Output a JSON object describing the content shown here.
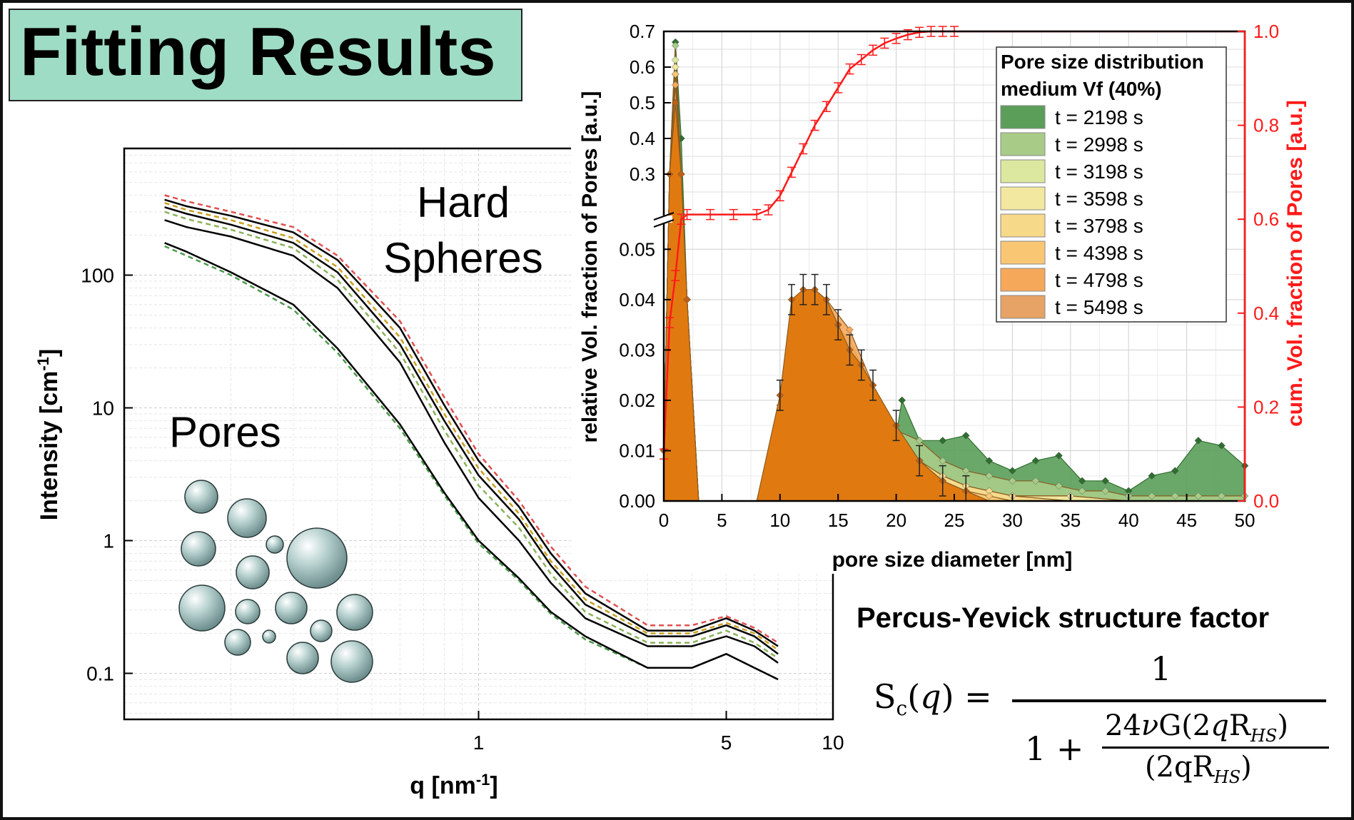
{
  "header": {
    "title": "Fitting Results"
  },
  "annotations": {
    "hard_line1": "Hard",
    "hard_line2": "Spheres",
    "pores": "Pores"
  },
  "equation": {
    "title": "Percus-Yevick structure factor",
    "lhs": "Sc(q) =",
    "numerator": "1",
    "denom_one": "1 +",
    "frac_top": "24νG(2qRHS)",
    "frac_bottom": "(2qRHS)"
  },
  "colors": {
    "title_bg": "#9fdcc6",
    "cumulative": "#ff1a1a",
    "fit_black": "#000000",
    "sphere": "#9ab9b8"
  },
  "chart_data": [
    {
      "type": "line",
      "xlabel": "q [nm-1]",
      "ylabel": "Intensity [cm-1]",
      "xscale": "log",
      "yscale": "log",
      "xlim": [
        0.1,
        10
      ],
      "ylim": [
        0.045,
        900
      ],
      "xticks": [
        {
          "v": 1,
          "label": "1"
        },
        {
          "v": 5,
          "label": "5"
        },
        {
          "v": 10,
          "label": "10"
        }
      ],
      "yticks": [
        {
          "v": 0.1,
          "label": "0.1"
        },
        {
          "v": 1,
          "label": "1"
        },
        {
          "v": 10,
          "label": "10"
        },
        {
          "v": 100,
          "label": "100"
        }
      ],
      "grid": true,
      "series": [
        {
          "color": "#e05050",
          "dashed": true,
          "x": [
            0.13,
            0.15,
            0.2,
            0.3,
            0.4,
            0.6,
            0.8,
            1.0,
            1.3,
            1.6,
            2,
            3,
            4,
            5,
            6,
            7
          ],
          "y": [
            400,
            360,
            300,
            230,
            140,
            45,
            12,
            4.5,
            2.0,
            0.9,
            0.45,
            0.23,
            0.23,
            0.27,
            0.22,
            0.17
          ]
        },
        {
          "color": "#000000",
          "dashed": false,
          "x": [
            0.13,
            0.15,
            0.2,
            0.3,
            0.4,
            0.6,
            0.8,
            1.0,
            1.3,
            1.6,
            2,
            3,
            4,
            5,
            6,
            7
          ],
          "y": [
            370,
            330,
            280,
            210,
            130,
            40,
            10.5,
            4.0,
            1.8,
            0.8,
            0.4,
            0.21,
            0.21,
            0.26,
            0.21,
            0.16
          ]
        },
        {
          "color": "#c9a020",
          "dashed": true,
          "x": [
            0.13,
            0.15,
            0.2,
            0.3,
            0.4,
            0.6,
            0.8,
            1.0,
            1.3,
            1.6,
            2,
            3,
            4,
            5,
            6,
            7
          ],
          "y": [
            350,
            310,
            260,
            190,
            115,
            34,
            9,
            3.5,
            1.6,
            0.7,
            0.36,
            0.2,
            0.2,
            0.24,
            0.2,
            0.15
          ]
        },
        {
          "color": "#000000",
          "dashed": false,
          "x": [
            0.13,
            0.15,
            0.2,
            0.3,
            0.4,
            0.6,
            0.8,
            1.0,
            1.3,
            1.6,
            2,
            3,
            4,
            5,
            6,
            7
          ],
          "y": [
            325,
            290,
            240,
            175,
            105,
            30,
            8,
            3.1,
            1.45,
            0.65,
            0.33,
            0.19,
            0.19,
            0.23,
            0.19,
            0.14
          ]
        },
        {
          "color": "#8ab35a",
          "dashed": true,
          "x": [
            0.13,
            0.15,
            0.2,
            0.3,
            0.4,
            0.6,
            0.8,
            1.0,
            1.3,
            1.6,
            2,
            3,
            4,
            5,
            6,
            7
          ],
          "y": [
            300,
            265,
            220,
            160,
            92,
            26,
            6.8,
            2.6,
            1.25,
            0.56,
            0.29,
            0.17,
            0.17,
            0.21,
            0.17,
            0.13
          ]
        },
        {
          "color": "#000000",
          "dashed": false,
          "x": [
            0.13,
            0.15,
            0.2,
            0.3,
            0.4,
            0.6,
            0.8,
            1.0,
            1.3,
            1.6,
            2,
            3,
            4,
            5,
            6,
            7
          ],
          "y": [
            260,
            230,
            195,
            140,
            80,
            22,
            5.5,
            2.1,
            1.0,
            0.48,
            0.26,
            0.16,
            0.16,
            0.19,
            0.16,
            0.12
          ]
        },
        {
          "color": "#4a9a4a",
          "dashed": true,
          "x": [
            0.13,
            0.15,
            0.2,
            0.3,
            0.4,
            0.6,
            0.8,
            1.0,
            1.3,
            1.6,
            2,
            3,
            4,
            5,
            6,
            7
          ],
          "y": [
            165,
            140,
            100,
            55,
            26,
            7,
            2.2,
            0.95,
            0.5,
            0.28,
            0.18,
            0.11,
            0.11,
            0.14,
            0.11,
            0.09
          ]
        },
        {
          "color": "#000000",
          "dashed": false,
          "x": [
            0.13,
            0.15,
            0.2,
            0.3,
            0.4,
            0.6,
            0.8,
            1.0,
            1.3,
            1.6,
            2,
            3,
            4,
            5,
            6,
            7
          ],
          "y": [
            175,
            150,
            105,
            60,
            28,
            7.5,
            2.3,
            1.0,
            0.52,
            0.29,
            0.19,
            0.11,
            0.11,
            0.14,
            0.11,
            0.09
          ]
        }
      ]
    },
    {
      "type": "area",
      "xlabel": "pore size diameter [nm]",
      "ylabel": "relative Vol. fraction of Pores [a.u.]",
      "y2label": "cum. Vol. fraction of Pores [a.u.]",
      "xlim": [
        0,
        50
      ],
      "xticks": [
        0,
        5,
        10,
        15,
        20,
        25,
        30,
        35,
        40,
        45,
        50
      ],
      "y_lower_ticks": [
        "0.00",
        "0.01",
        "0.02",
        "0.03",
        "0.04",
        "0.05"
      ],
      "y_upper_ticks": [
        "0.3",
        "0.4",
        "0.5",
        "0.6",
        "0.7"
      ],
      "y_break": [
        0.055,
        0.2
      ],
      "y2ticks": [
        "0.0",
        "0.2",
        "0.4",
        "0.6",
        "0.8",
        "1.0"
      ],
      "legend": {
        "title_line1": "Pore size distribution",
        "title_line2": "medium Vf (40%)",
        "position": "top-right"
      },
      "series": [
        {
          "name": "t = 2198 s",
          "color": "#5a9e5a",
          "x": [
            0,
            0.5,
            1,
            1.5,
            2,
            3,
            5,
            8,
            10,
            12,
            14,
            16,
            18,
            20,
            20.5,
            22,
            24,
            26,
            28,
            30,
            32,
            34,
            36,
            38,
            40,
            42,
            44,
            46,
            48,
            50
          ],
          "y": [
            0.01,
            0.3,
            0.67,
            0.4,
            0.04,
            0,
            0,
            0,
            0.008,
            0.018,
            0.019,
            0.018,
            0.015,
            0.013,
            0.02,
            0.012,
            0.012,
            0.013,
            0.008,
            0.006,
            0.008,
            0.009,
            0.004,
            0.004,
            0.002,
            0.005,
            0.006,
            0.012,
            0.011,
            0.007
          ]
        },
        {
          "name": "t = 2998 s",
          "color": "#a8cc88",
          "x": [
            0,
            0.5,
            1,
            1.5,
            2,
            3,
            5,
            8,
            10,
            12,
            14,
            16,
            18,
            20,
            22,
            24,
            26,
            28,
            30,
            32,
            34,
            36,
            38,
            40,
            42,
            44,
            46,
            48,
            50
          ],
          "y": [
            0.01,
            0.3,
            0.66,
            0.3,
            0.04,
            0,
            0,
            0,
            0.009,
            0.02,
            0.021,
            0.019,
            0.015,
            0.014,
            0.012,
            0.008,
            0.006,
            0.005,
            0.004,
            0.004,
            0.003,
            0.002,
            0.002,
            0.001,
            0.001,
            0.001,
            0.001,
            0.001,
            0.001
          ]
        },
        {
          "name": "t = 3198 s",
          "color": "#dce8a0",
          "x": [
            0,
            0.5,
            1,
            1.5,
            2,
            3,
            5,
            8,
            10,
            12,
            14,
            16,
            18,
            20,
            22,
            24,
            26,
            28,
            30,
            35,
            40,
            45,
            50
          ],
          "y": [
            0.01,
            0.3,
            0.62,
            0.3,
            0.04,
            0,
            0,
            0,
            0.01,
            0.024,
            0.026,
            0.022,
            0.016,
            0.011,
            0.008,
            0.005,
            0.003,
            0.002,
            0.001,
            0.001,
            0,
            0,
            0
          ]
        },
        {
          "name": "t = 3598 s",
          "color": "#f2e8a0",
          "x": [
            0,
            0.5,
            1,
            1.5,
            2,
            3,
            5,
            8,
            10,
            12,
            14,
            16,
            18,
            20,
            22,
            24,
            26,
            28,
            30,
            35,
            40,
            45,
            50
          ],
          "y": [
            0.01,
            0.3,
            0.6,
            0.3,
            0.04,
            0,
            0,
            0,
            0.012,
            0.028,
            0.03,
            0.026,
            0.018,
            0.012,
            0.008,
            0.005,
            0.003,
            0.002,
            0.001,
            0.001,
            0,
            0,
            0
          ]
        },
        {
          "name": "t = 3798 s",
          "color": "#f7d98a",
          "x": [
            0,
            0.5,
            1,
            1.5,
            2,
            3,
            5,
            8,
            10,
            12,
            14,
            16,
            18,
            20,
            22,
            24,
            26,
            28,
            30,
            35,
            40,
            45,
            50
          ],
          "y": [
            0.01,
            0.3,
            0.58,
            0.3,
            0.04,
            0,
            0,
            0,
            0.014,
            0.032,
            0.034,
            0.029,
            0.02,
            0.013,
            0.008,
            0.005,
            0.003,
            0.002,
            0.001,
            0,
            0,
            0,
            0
          ]
        },
        {
          "name": "t = 4398 s",
          "color": "#f9c774",
          "x": [
            0,
            0.5,
            1,
            1.5,
            2,
            3,
            5,
            8,
            10,
            12,
            14,
            16,
            18,
            20,
            22,
            24,
            26,
            28,
            30,
            35,
            40,
            45,
            50
          ],
          "y": [
            0.01,
            0.3,
            0.58,
            0.3,
            0.04,
            0,
            0,
            0,
            0.017,
            0.036,
            0.037,
            0.032,
            0.022,
            0.014,
            0.008,
            0.004,
            0.002,
            0.001,
            0,
            0,
            0,
            0,
            0
          ]
        },
        {
          "name": "t = 4798 s",
          "color": "#f6a85a",
          "x": [
            0,
            0.5,
            1,
            1.5,
            2,
            3,
            5,
            8,
            10,
            12,
            14,
            16,
            18,
            20,
            22,
            24,
            26,
            28,
            30,
            35,
            40,
            45,
            50
          ],
          "y": [
            0.01,
            0.3,
            0.55,
            0.3,
            0.04,
            0,
            0,
            0,
            0.019,
            0.039,
            0.04,
            0.034,
            0.023,
            0.014,
            0.008,
            0.004,
            0.002,
            0,
            0,
            0,
            0,
            0,
            0
          ]
        },
        {
          "name": "t = 5498 s",
          "color": "#e6a365",
          "x": [
            0,
            0.5,
            1,
            1.5,
            2,
            3,
            5,
            8,
            10,
            11,
            12,
            13,
            14,
            15,
            16,
            17,
            18,
            20,
            22,
            24,
            26,
            28,
            30,
            35,
            40,
            45,
            50
          ],
          "y": [
            0.01,
            0.3,
            0.5,
            0.3,
            0.04,
            0,
            0,
            0,
            0.021,
            0.04,
            0.042,
            0.042,
            0.04,
            0.035,
            0.03,
            0.027,
            0.023,
            0.015,
            0.008,
            0.004,
            0.002,
            0,
            0,
            0,
            0,
            0,
            0
          ]
        }
      ],
      "cumulative": {
        "color": "#ff1a1a",
        "x": [
          0,
          0.5,
          1,
          1.5,
          2,
          4,
          6,
          8,
          9,
          10,
          11,
          12,
          13,
          14,
          15,
          16,
          17,
          18,
          19,
          20,
          21,
          22,
          23,
          24,
          25,
          30,
          35,
          40,
          45,
          50
        ],
        "y": [
          0.1,
          0.38,
          0.48,
          0.6,
          0.61,
          0.61,
          0.61,
          0.61,
          0.62,
          0.65,
          0.7,
          0.75,
          0.8,
          0.84,
          0.88,
          0.92,
          0.94,
          0.96,
          0.975,
          0.985,
          0.993,
          0.998,
          1.0,
          1.0,
          1.0,
          1.0,
          1.0,
          1.0,
          1.0,
          1.0
        ]
      }
    }
  ]
}
